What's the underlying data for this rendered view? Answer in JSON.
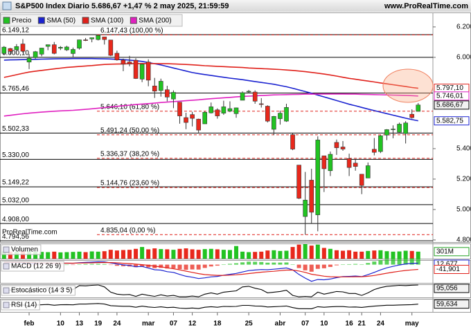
{
  "chart_data": [
    {
      "type": "candlestick",
      "title": "S&P500 Index Diario 5.686,67 +1,47 % 2 may 2025, 21:59:59",
      "source": "www.ProRealTime.com",
      "watermark": "ProRealTime.com",
      "name": "Precio",
      "categories": [
        null,
        null,
        null,
        null,
        "feb",
        null,
        null,
        null,
        null,
        "10",
        null,
        null,
        "13",
        null,
        null,
        "19",
        null,
        null,
        "24",
        null,
        null,
        null,
        null,
        "mar",
        null,
        null,
        null,
        "07",
        null,
        null,
        "12",
        null,
        null,
        null,
        "18",
        null,
        null,
        null,
        null,
        "25",
        null,
        null,
        null,
        null,
        "abr",
        null,
        null,
        null,
        "07",
        null,
        null,
        "10",
        null,
        null,
        null,
        "16",
        null,
        "21",
        null,
        null,
        "24",
        null,
        null,
        null,
        null,
        "may",
        null
      ],
      "open": [
        6026,
        6058,
        6050,
        6088,
        5969,
        5998,
        6021,
        6072,
        6083,
        6060,
        6049,
        6025,
        6060,
        6115,
        6121,
        6117,
        6134,
        6114,
        6027,
        5982,
        5970,
        5981,
        5857,
        5969,
        5812,
        5782,
        5787,
        5726,
        5705,
        5604,
        5624,
        5594,
        5563,
        5635,
        5655,
        5633,
        5646,
        5630,
        5718,
        5776,
        5772,
        5695,
        5679,
        5527,
        5597,
        5581,
        5492,
        5292,
        4954,
        5193,
        4965,
        5353,
        5255,
        5441,
        5411,
        5335,
        5305,
        5232,
        5207,
        5396,
        5381,
        5489,
        5528,
        5508,
        5499,
        5626,
        5645
      ],
      "high": [
        6074,
        6062,
        6087,
        6120,
        6022,
        6042,
        6062,
        6084,
        6101,
        6074,
        6076,
        6064,
        6116,
        6127,
        6129,
        6147,
        6134,
        6115,
        6044,
        5992,
        6010,
        5994,
        5959,
        5987,
        5865,
        5860,
        5813,
        5783,
        5705,
        5636,
        5642,
        5597,
        5645,
        5703,
        5665,
        5715,
        5711,
        5670,
        5776,
        5786,
        5783,
        5732,
        5685,
        5615,
        5650,
        5695,
        5501,
        5292,
        5247,
        5268,
        5481,
        5353,
        5381,
        5460,
        5450,
        5367,
        5328,
        5232,
        5309,
        5470,
        5489,
        5528,
        5553,
        5571,
        5581,
        5658,
        5700
      ],
      "low": [
        6017,
        6020,
        6040,
        6031,
        5923,
        5990,
        6007,
        6047,
        6020,
        6048,
        6042,
        6003,
        6051,
        6107,
        6099,
        6111,
        6084,
        6008,
        5978,
        5909,
        5941,
        5858,
        5837,
        5810,
        5733,
        5742,
        5711,
        5666,
        5564,
        5528,
        5546,
        5505,
        5563,
        5631,
        5597,
        5622,
        5640,
        5603,
        5718,
        5765,
        5695,
        5670,
        5572,
        5489,
        5558,
        5576,
        5390,
        5069,
        4835,
        4910,
        4857,
        5115,
        5220,
        5359,
        5386,
        5220,
        5255,
        5101,
        5207,
        5356,
        5371,
        5456,
        5468,
        5505,
        5434,
        5597,
        5645
      ],
      "close": [
        6067,
        6039,
        6071,
        6040,
        5994,
        6037,
        6061,
        6083,
        6026,
        6066,
        6068,
        6052,
        6115,
        6114,
        6129,
        6144,
        6117,
        6013,
        5983,
        5955,
        5956,
        5861,
        5955,
        5850,
        5778,
        5843,
        5739,
        5770,
        5615,
        5572,
        5599,
        5522,
        5639,
        5675,
        5615,
        5675,
        5663,
        5668,
        5768,
        5777,
        5712,
        5693,
        5581,
        5612,
        5633,
        5671,
        5397,
        5074,
        5062,
        4982,
        5457,
        5268,
        5363,
        5406,
        5397,
        5276,
        5283,
        5158,
        5288,
        5376,
        5485,
        5525,
        5529,
        5561,
        5569,
        5604,
        5687
      ],
      "up_color": "#22c322",
      "down_color": "#e8281c",
      "series": [
        {
          "name": "SMA (50)",
          "color": "#1a22d0",
          "values": [
            5982,
            5983,
            5984,
            5985,
            5986,
            5987,
            5988,
            5989,
            5990,
            5991,
            5991,
            5992,
            5992,
            5992,
            5992,
            5991,
            5990,
            5989,
            5987,
            5985,
            5982,
            5978,
            5973,
            5966,
            5958,
            5950,
            5940,
            5930,
            5920,
            5910,
            5900,
            5893,
            5887,
            5881,
            5875,
            5869,
            5863,
            5858,
            5853,
            5847,
            5841,
            5835,
            5829,
            5823,
            5815,
            5807,
            5797,
            5786,
            5775,
            5764,
            5752,
            5740,
            5728,
            5716,
            5704,
            5692,
            5682,
            5671,
            5660,
            5650,
            5640,
            5630,
            5620,
            5610,
            5600,
            5591,
            5583
          ]
        },
        {
          "name": "SMA (100)",
          "color": "#e0201a",
          "values": [
            5868,
            5877,
            5886,
            5895,
            5903,
            5909,
            5914,
            5919,
            5924,
            5929,
            5934,
            5937,
            5940,
            5943,
            5946,
            5950,
            5953,
            5955,
            5956,
            5957,
            5958,
            5959,
            5959,
            5959,
            5959,
            5958,
            5958,
            5957,
            5955,
            5953,
            5951,
            5948,
            5945,
            5943,
            5941,
            5939,
            5937,
            5935,
            5933,
            5930,
            5928,
            5926,
            5924,
            5922,
            5920,
            5917,
            5914,
            5910,
            5906,
            5901,
            5896,
            5890,
            5884,
            5877,
            5869,
            5862,
            5856,
            5850,
            5844,
            5838,
            5832,
            5826,
            5820,
            5814,
            5808,
            5802,
            5797
          ]
        },
        {
          "name": "SMA (200)",
          "color": "#e020c0",
          "values": [
            5614,
            5619,
            5624,
            5629,
            5633,
            5637,
            5640,
            5643,
            5646,
            5648,
            5650,
            5652,
            5655,
            5658,
            5662,
            5666,
            5670,
            5674,
            5678,
            5682,
            5686,
            5690,
            5693,
            5696,
            5699,
            5703,
            5706,
            5709,
            5712,
            5715,
            5718,
            5721,
            5725,
            5728,
            5731,
            5734,
            5737,
            5740,
            5743,
            5745,
            5747,
            5749,
            5751,
            5753,
            5754,
            5755,
            5756,
            5757,
            5758,
            5758,
            5759,
            5759,
            5759,
            5759,
            5759,
            5758,
            5758,
            5757,
            5756,
            5755,
            5754,
            5753,
            5752,
            5751,
            5750,
            5748,
            5746
          ]
        }
      ],
      "ylim": [
        4786,
        6295
      ],
      "yticks": [
        {
          "value": 6200,
          "label": "6.200"
        },
        {
          "value": 6000,
          "label": "6.000"
        },
        {
          "value": 5400,
          "label": "5.400"
        },
        {
          "value": 5200,
          "label": "5.200"
        },
        {
          "value": 5000,
          "label": "5.000"
        },
        {
          "value": 4800,
          "label": "4.800"
        }
      ],
      "levels": [
        {
          "value": 6149.12,
          "label": "6.149,12"
        },
        {
          "value": 6000.1,
          "label": "6.000,10"
        },
        {
          "value": 5765.46,
          "label": "5.765,46"
        },
        {
          "value": 5502.33,
          "label": "5.502,33"
        },
        {
          "value": 5330.0,
          "label": "5.330,00"
        },
        {
          "value": 5149.22,
          "label": "5.149,22"
        },
        {
          "value": 5032.0,
          "label": "5.032,00"
        },
        {
          "value": 4908.0,
          "label": "4.908,00"
        },
        {
          "value": 4794.56,
          "label": "4.794,56"
        }
      ],
      "fib_color": "#e0201a",
      "fib_levels": [
        {
          "value": 6147.43,
          "label": "6.147,43 (100,00 %)"
        },
        {
          "value": 5646.1,
          "label": "5.646,10 (61,80 %)"
        },
        {
          "value": 5491.24,
          "label": "5.491,24 (50,00 %)"
        },
        {
          "value": 5336.37,
          "label": "5.336,37 (38,20 %)"
        },
        {
          "value": 5144.76,
          "label": "5.144,76 (23,60 %)"
        },
        {
          "value": 4835.04,
          "label": "4.835,04 (0,00 %)"
        }
      ],
      "markers": [
        {
          "value": 5797.1,
          "label": "5.797,10",
          "color": "#e0201a"
        },
        {
          "value": 5746.01,
          "label": "5.746,01",
          "color": "#d81cc0"
        },
        {
          "value": 5686.67,
          "label": "5.686,67",
          "color": "#000000"
        },
        {
          "value": 5582.75,
          "label": "5.582,75",
          "color": "#1a22d0"
        }
      ]
    },
    {
      "type": "bar",
      "title": "Volumen",
      "values": [
        310,
        300,
        290,
        330,
        320,
        300,
        290,
        280,
        300,
        270,
        280,
        290,
        300,
        280,
        310,
        300,
        320,
        380,
        350,
        370,
        380,
        420,
        500,
        400,
        440,
        410,
        400,
        380,
        420,
        440,
        400,
        380,
        410,
        420,
        400,
        380,
        370,
        540,
        300,
        280,
        290,
        300,
        350,
        360,
        330,
        340,
        500,
        600,
        620,
        560,
        600,
        460,
        420,
        360,
        340,
        360,
        300,
        300,
        330,
        350,
        360,
        320,
        300,
        310,
        340,
        330,
        301
      ],
      "ylim": [
        0,
        650
      ],
      "markers": [
        {
          "value": 301,
          "label": "301M",
          "color": "#22a022"
        }
      ]
    },
    {
      "type": "macd",
      "title": "MACD (12 26 9)",
      "series": [
        {
          "color": "#1a22d0",
          "values": [
            20,
            18,
            19,
            15,
            8,
            9,
            11,
            14,
            10,
            12,
            13,
            12,
            17,
            20,
            22,
            25,
            24,
            15,
            6,
            -2,
            -7,
            -18,
            -16,
            -30,
            -45,
            -48,
            -62,
            -68,
            -86,
            -102,
            -110,
            -122,
            -116,
            -107,
            -103,
            -93,
            -85,
            -77,
            -64,
            -52,
            -47,
            -43,
            -45,
            -40,
            -35,
            -29,
            -46,
            -86,
            -118,
            -146,
            -130,
            -133,
            -126,
            -114,
            -105,
            -103,
            -100,
            -105,
            -88,
            -68,
            -46,
            -28,
            -15,
            -3,
            6,
            10,
            12.677
          ]
        },
        {
          "color": "#e0201a",
          "values": [
            22,
            21,
            21,
            20,
            18,
            16,
            15,
            15,
            14,
            13,
            13,
            13,
            14,
            15,
            16,
            18,
            19,
            18,
            16,
            12,
            9,
            4,
            0,
            -6,
            -14,
            -20,
            -28,
            -36,
            -46,
            -57,
            -68,
            -79,
            -87,
            -91,
            -94,
            -94,
            -92,
            -89,
            -84,
            -78,
            -72,
            -66,
            -62,
            -58,
            -53,
            -48,
            -48,
            -56,
            -68,
            -84,
            -93,
            -101,
            -106,
            -108,
            -107,
            -107,
            -106,
            -106,
            -102,
            -95,
            -85,
            -75,
            -66,
            -58,
            -51,
            -46,
            -41.901
          ]
        }
      ],
      "histogram": [
        -2,
        -3,
        -2,
        -5,
        -10,
        -7,
        -4,
        -1,
        -4,
        -1,
        0,
        -1,
        3,
        5,
        6,
        7,
        5,
        -3,
        -10,
        -14,
        -16,
        -22,
        -16,
        -24,
        -31,
        -28,
        -34,
        -32,
        -40,
        -45,
        -42,
        -43,
        -29,
        -16,
        -9,
        1,
        7,
        12,
        20,
        26,
        25,
        23,
        17,
        18,
        18,
        19,
        2,
        -30,
        -50,
        -62,
        -37,
        -32,
        -20,
        -6,
        2,
        4,
        6,
        1,
        14,
        27,
        39,
        47,
        51,
        55,
        57,
        56,
        54.578
      ],
      "up_color": "#22c322",
      "down_color": "#e8281c",
      "ylim": [
        -160,
        40
      ],
      "markers": [
        {
          "value": 12.677,
          "label": "12,677",
          "color": "#1a22d0"
        },
        {
          "value": -41.901,
          "label": "-41,901",
          "color": "#e0201a"
        }
      ]
    },
    {
      "type": "line",
      "title": "Estocástico (14 3 5)",
      "series": [
        {
          "color": "#000000",
          "values": [
            70,
            55,
            70,
            50,
            35,
            55,
            65,
            75,
            45,
            65,
            68,
            60,
            90,
            88,
            92,
            95,
            80,
            40,
            25,
            20,
            22,
            8,
            25,
            15,
            8,
            20,
            10,
            15,
            5,
            5,
            10,
            5,
            25,
            35,
            25,
            40,
            45,
            50,
            80,
            85,
            70,
            60,
            35,
            40,
            45,
            55,
            15,
            5,
            8,
            5,
            40,
            25,
            35,
            45,
            42,
            30,
            30,
            15,
            35,
            60,
            75,
            85,
            88,
            92,
            90,
            93,
            95.056
          ]
        }
      ],
      "ylim": [
        0,
        100
      ],
      "markers": [
        {
          "value": 95.056,
          "label": "95,056",
          "color": "#000000"
        }
      ]
    },
    {
      "type": "line",
      "title": "RSI (14)",
      "series": [
        {
          "color": "#000000",
          "values": [
            58,
            55,
            58,
            53,
            48,
            52,
            55,
            57,
            51,
            55,
            56,
            54,
            60,
            60,
            62,
            64,
            60,
            48,
            45,
            43,
            43,
            36,
            44,
            38,
            34,
            39,
            33,
            36,
            29,
            27,
            30,
            26,
            36,
            40,
            36,
            42,
            41,
            42,
            50,
            50,
            45,
            44,
            38,
            40,
            42,
            45,
            33,
            25,
            25,
            24,
            40,
            36,
            39,
            41,
            41,
            37,
            38,
            35,
            40,
            44,
            48,
            51,
            51,
            53,
            54,
            56,
            59.634
          ]
        }
      ],
      "ylim": [
        0,
        100
      ],
      "markers": [
        {
          "value": 59.634,
          "label": "59,634",
          "color": "#000000"
        }
      ]
    }
  ]
}
